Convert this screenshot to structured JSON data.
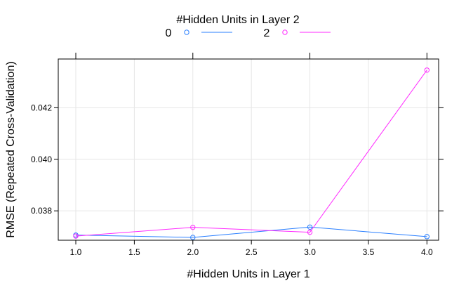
{
  "chart_data": {
    "type": "line",
    "title": "",
    "xlabel": "#Hidden Units in Layer 1",
    "ylabel": "RMSE (Repeated Cross-Validation)",
    "legend": {
      "title": "#Hidden Units in Layer 2",
      "placement": "top"
    },
    "x": [
      1.0,
      2.0,
      3.0,
      4.0
    ],
    "x_ticks": [
      1.0,
      1.5,
      2.0,
      2.5,
      3.0,
      3.5,
      4.0
    ],
    "x_tick_labels": [
      "1.0",
      "1.5",
      "2.0",
      "2.5",
      "3.0",
      "3.5",
      "4.0"
    ],
    "y_ticks": [
      0.038,
      0.04,
      0.042
    ],
    "y_tick_labels": [
      "0.038",
      "0.040",
      "0.042"
    ],
    "xlim": [
      0.85,
      4.1
    ],
    "ylim": [
      0.03686,
      0.04389
    ],
    "grid": true,
    "series": [
      {
        "name": "0",
        "color": "#2a7fff",
        "values": [
          0.03706,
          0.03697,
          0.03737,
          0.037
        ]
      },
      {
        "name": "2",
        "color": "#ff2aff",
        "values": [
          0.03702,
          0.03736,
          0.03717,
          0.04346
        ]
      }
    ]
  }
}
